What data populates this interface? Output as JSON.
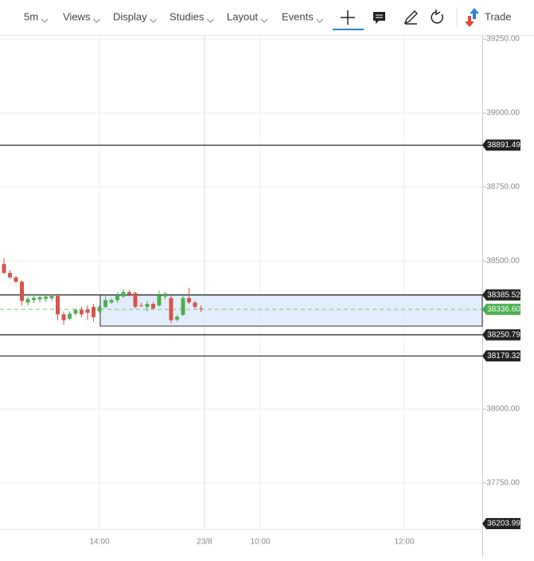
{
  "toolbar": {
    "menus": [
      "5m",
      "Views",
      "Display",
      "Studies",
      "Layout",
      "Events"
    ],
    "trade": "Trade"
  },
  "chart_data": {
    "type": "candlestick",
    "candles": {
      "open": [
        38490,
        38460,
        38445,
        38430,
        38360,
        38368,
        38370,
        38372,
        38374,
        38382,
        38320,
        38305,
        38322,
        38335,
        38336,
        38345,
        38330,
        38345,
        38360,
        38368,
        38380,
        38395,
        38392,
        38350,
        38345,
        38355,
        38350,
        38380,
        38375,
        38302,
        38318,
        38375,
        38360,
        38340
      ],
      "high": [
        38510,
        38470,
        38450,
        38435,
        38380,
        38382,
        38385,
        38384,
        38386,
        38390,
        38330,
        38330,
        38340,
        38345,
        38350,
        38355,
        38350,
        38380,
        38375,
        38395,
        38405,
        38402,
        38396,
        38360,
        38365,
        38362,
        38400,
        38395,
        38385,
        38318,
        38382,
        38410,
        38365,
        38350
      ],
      "low": [
        38455,
        38440,
        38425,
        38350,
        38350,
        38358,
        38360,
        38362,
        38366,
        38300,
        38285,
        38300,
        38315,
        38310,
        38300,
        38295,
        38325,
        38340,
        38355,
        38360,
        38375,
        38380,
        38340,
        38345,
        38330,
        38335,
        38345,
        38370,
        38290,
        38295,
        38315,
        38355,
        38340,
        38328
      ],
      "close": [
        38460,
        38445,
        38430,
        38365,
        38372,
        38376,
        38378,
        38380,
        38382,
        38320,
        38300,
        38322,
        38335,
        38320,
        38325,
        38310,
        38345,
        38368,
        38368,
        38385,
        38395,
        38388,
        38345,
        38348,
        38355,
        38340,
        38385,
        38390,
        38300,
        38312,
        38375,
        38360,
        38345,
        38338
      ]
    },
    "up_color": "#4caf50",
    "down_color": "#d9534f",
    "ylim": [
      37594,
      39261
    ],
    "yticks": [
      {
        "value": 37750,
        "label": "37750.00"
      },
      {
        "value": 38000,
        "label": "38000.00"
      },
      {
        "value": 38500,
        "label": "38500.00"
      },
      {
        "value": 38750,
        "label": "38750.00"
      },
      {
        "value": 39000,
        "label": "39000.00"
      },
      {
        "value": 39250,
        "label": "39250.00"
      }
    ],
    "grid": true,
    "x_labels": [
      "14:00",
      "23/8",
      "10:00",
      "12:00"
    ],
    "levels": [
      {
        "value": 38891.49,
        "label": "38891.49",
        "color": "#222222",
        "dashed": false
      },
      {
        "value": 38385.52,
        "label": "38385.52",
        "color": "#222222",
        "dashed": false
      },
      {
        "value": 38336.6,
        "label": "38336.60",
        "color": "#4caf50",
        "dashed": true
      },
      {
        "value": 38250.79,
        "label": "38250.79",
        "color": "#222222",
        "dashed": false
      },
      {
        "value": 38179.32,
        "label": "38179.32",
        "color": "#222222",
        "dashed": false
      },
      {
        "value": 36203.99,
        "label": "36203.99",
        "color": "#222222",
        "dashed": false
      }
    ],
    "box": {
      "top": 38385.52,
      "bottom": 38280,
      "color": "#dde8fa"
    }
  }
}
